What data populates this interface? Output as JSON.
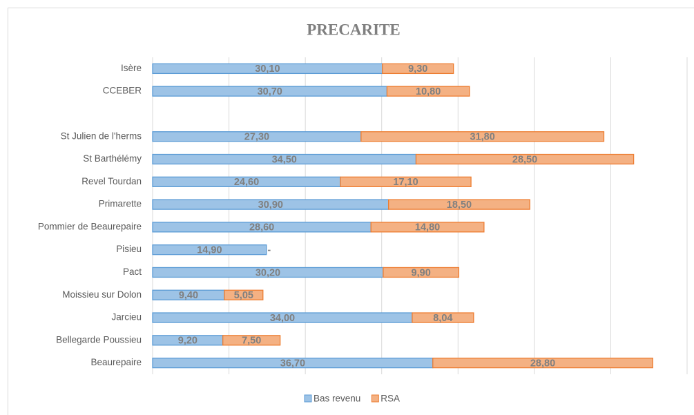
{
  "chart_data": {
    "type": "stacked_barh",
    "title": "PRECARITE",
    "categories": [
      "Isère",
      "CCEBER",
      null,
      "St Julien de l'herms",
      "St Barthélémy",
      "Revel Tourdan",
      "Primarette",
      "Pommier de Beaurepaire",
      "Pisieu",
      "Pact",
      "Moissieu sur Dolon",
      "Jarcieu",
      "Bellegarde Poussieu",
      "Beaurepaire"
    ],
    "series": [
      {
        "name": "Bas revenu",
        "color": "#9dc3e6",
        "edgecolor": "#5b9bd5",
        "values": [
          30.1,
          30.7,
          null,
          27.3,
          34.5,
          24.6,
          30.9,
          28.6,
          14.9,
          30.2,
          9.4,
          34.0,
          9.2,
          36.7
        ],
        "value_labels": [
          "30,10",
          "30,70",
          null,
          "27,30",
          "34,50",
          "24,60",
          "30,90",
          "28,60",
          "14,90",
          "30,20",
          "9,40",
          "34,00",
          "9,20",
          "36,70"
        ]
      },
      {
        "name": "RSA",
        "color": "#f4b183",
        "edgecolor": "#ed7d31",
        "values": [
          9.3,
          10.8,
          null,
          31.8,
          28.5,
          17.1,
          18.5,
          14.8,
          0,
          9.9,
          5.05,
          8.04,
          7.5,
          28.8
        ],
        "value_labels": [
          "9,30",
          "10,80",
          null,
          "31,80",
          "28,50",
          "17,10",
          "18,50",
          "14,80",
          "-",
          "9,90",
          "5,05",
          "8,04",
          "7,50",
          "28,80"
        ]
      }
    ],
    "xlim": [
      0,
      70
    ],
    "xticks": [
      0,
      10,
      20,
      30,
      40,
      50,
      60,
      70
    ],
    "grid": true,
    "legend": "bottom"
  }
}
